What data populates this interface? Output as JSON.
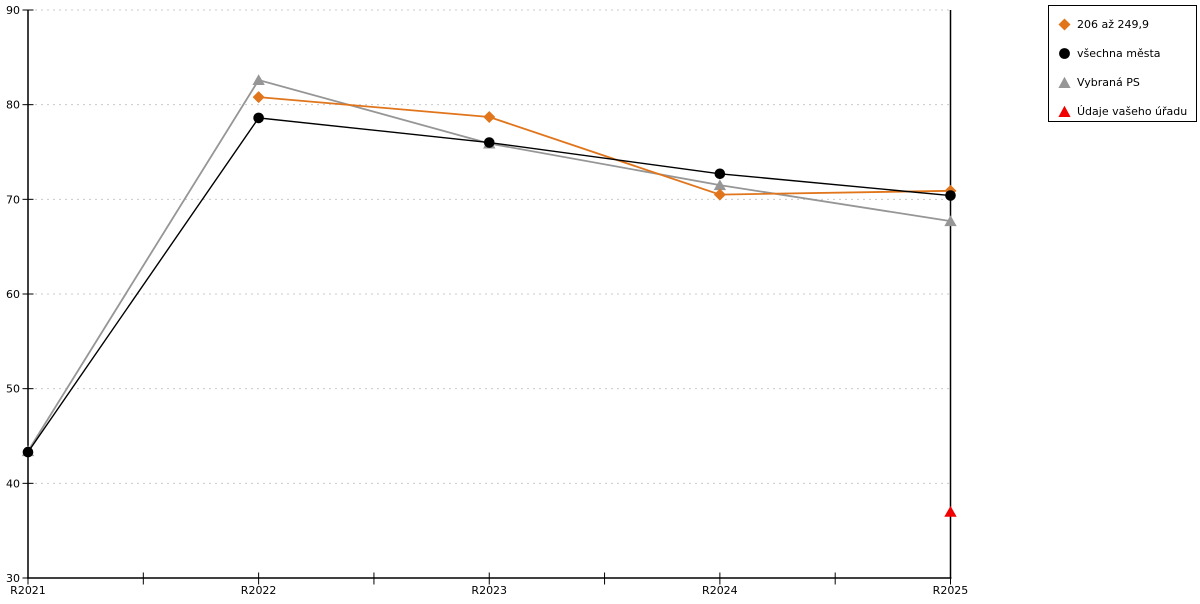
{
  "chart_data": {
    "type": "line",
    "title": "",
    "xlabel": "",
    "ylabel": "",
    "categories": [
      "R2021",
      "R2022",
      "R2023",
      "R2024",
      "R2025"
    ],
    "series": [
      {
        "name": "206 až 249,9",
        "color": "#E0751C",
        "marker": "diamond",
        "line": true,
        "values": [
          null,
          80.8,
          78.7,
          70.5,
          70.9
        ]
      },
      {
        "name": "všechna města",
        "color": "#000000",
        "marker": "circle",
        "line": true,
        "values": [
          43.3,
          78.6,
          76.0,
          72.7,
          70.4
        ]
      },
      {
        "name": "Vybraná PS",
        "color": "#969696",
        "marker": "triangle",
        "line": true,
        "values": [
          43.4,
          82.6,
          75.9,
          71.5,
          67.7
        ]
      },
      {
        "name": "Údaje vašeho úřadu",
        "color": "#F20000",
        "marker": "triangle",
        "line": false,
        "values": [
          null,
          null,
          null,
          null,
          37.0
        ]
      }
    ],
    "ylim": [
      30,
      90
    ],
    "yticks": [
      30,
      40,
      50,
      60,
      70,
      80,
      90
    ],
    "grid": "dotted-horizontal",
    "grid_color": "#C9C9C9",
    "axis_color": "#000000",
    "legend_position": "top-right"
  }
}
